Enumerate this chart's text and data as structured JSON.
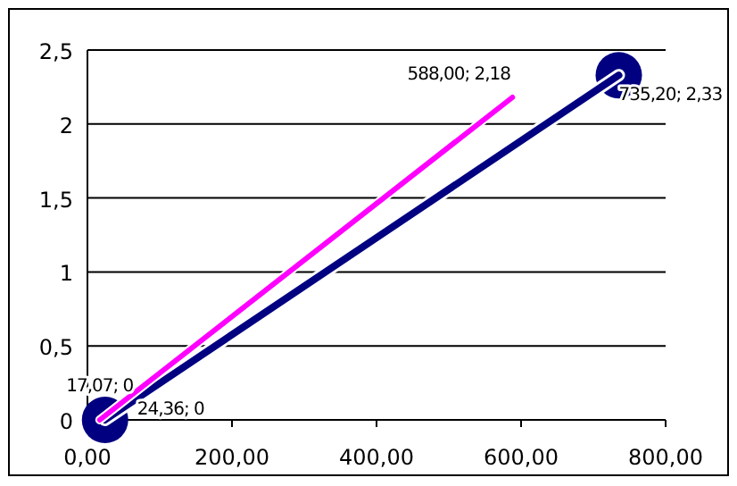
{
  "chart_data": {
    "type": "line",
    "series": [
      {
        "color": "#000080",
        "marker": "circle",
        "x": [
          24.36,
          735.2
        ],
        "values": [
          0,
          2.33
        ],
        "value_labels": [
          "24,36; 0",
          "735,20; 2,33"
        ]
      },
      {
        "color": "#ff00ff",
        "marker": "none",
        "x": [
          17.07,
          588.0
        ],
        "values": [
          0,
          2.18
        ],
        "value_labels": [
          "17,07; 0",
          "588,00; 2,18"
        ]
      }
    ],
    "xlim": [
      0,
      800
    ],
    "xticks": [
      {
        "value": 0,
        "label": "0,00"
      },
      {
        "value": 200,
        "label": "200,00"
      },
      {
        "value": 400,
        "label": "400,00"
      },
      {
        "value": 600,
        "label": "600,00"
      },
      {
        "value": 800,
        "label": "800,00"
      }
    ],
    "ylim": [
      0,
      2.5
    ],
    "yticks": [
      0,
      {
        "value": 0.5,
        "label": "0,5"
      },
      1,
      {
        "value": 1.5,
        "label": "1,5"
      },
      2,
      {
        "value": 2.5,
        "label": "2,5"
      }
    ],
    "grid": "y",
    "line_style": "solid"
  }
}
